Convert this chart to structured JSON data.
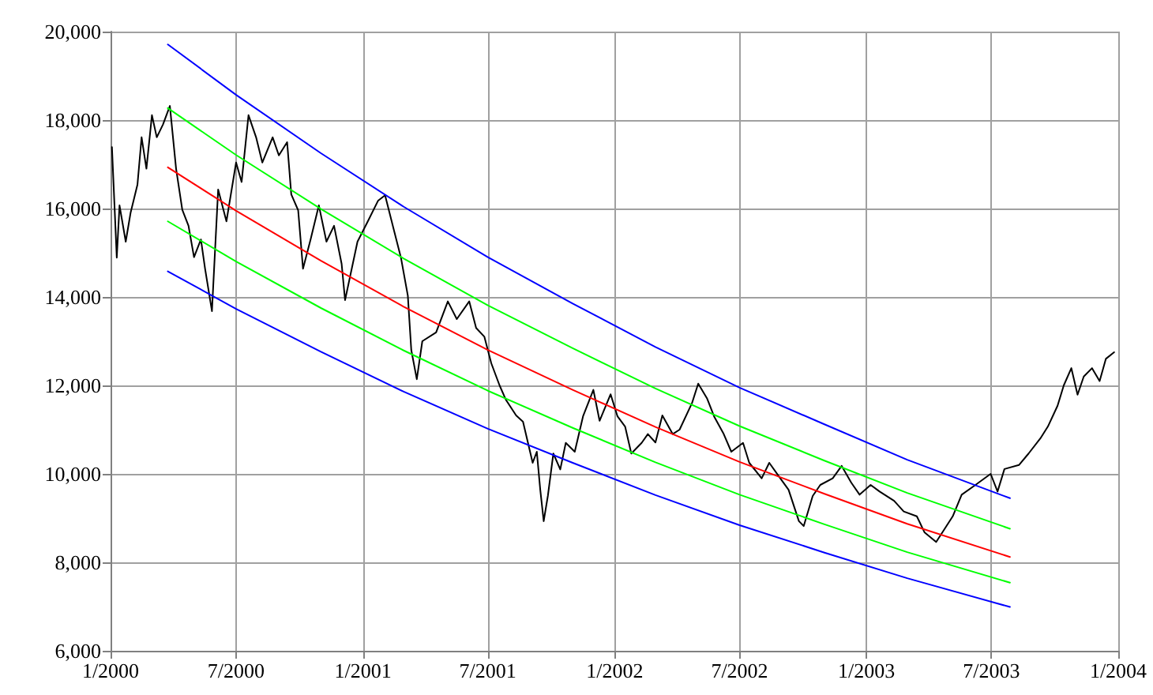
{
  "chart_data": {
    "type": "line",
    "grid": true,
    "marker": "none",
    "line_style": "solid",
    "xlim": [
      "2000-01-01",
      "2004-01-01"
    ],
    "xticks": [
      {
        "value": "2000-01-01",
        "label": "1/2000"
      },
      {
        "value": "2000-07-01",
        "label": "7/2000"
      },
      {
        "value": "2001-01-01",
        "label": "1/2001"
      },
      {
        "value": "2001-07-01",
        "label": "7/2001"
      },
      {
        "value": "2002-01-01",
        "label": "1/2002"
      },
      {
        "value": "2002-07-01",
        "label": "7/2002"
      },
      {
        "value": "2003-01-01",
        "label": "1/2003"
      },
      {
        "value": "2003-07-01",
        "label": "7/2003"
      },
      {
        "value": "2004-01-01",
        "label": "1/2004"
      }
    ],
    "ylim": [
      6000,
      20000
    ],
    "yticks": [
      {
        "value": 6000,
        "label": "6,000"
      },
      {
        "value": 8000,
        "label": "8,000"
      },
      {
        "value": 10000,
        "label": "10,000"
      },
      {
        "value": 12000,
        "label": "12,000"
      },
      {
        "value": 14000,
        "label": "14,000"
      },
      {
        "value": 16000,
        "label": "16,000"
      },
      {
        "value": 18000,
        "label": "18,000"
      },
      {
        "value": 20000,
        "label": "20,000"
      }
    ],
    "series": [
      {
        "color": "#000000",
        "x": [
          "2000-01-03",
          "2000-01-10",
          "2000-01-14",
          "2000-01-23",
          "2000-01-30",
          "2000-02-09",
          "2000-02-15",
          "2000-02-22",
          "2000-03-01",
          "2000-03-08",
          "2000-03-17",
          "2000-03-27",
          "2000-04-05",
          "2000-04-14",
          "2000-04-23",
          "2000-05-01",
          "2000-05-11",
          "2000-05-17",
          "2000-05-27",
          "2000-06-05",
          "2000-06-17",
          "2000-07-01",
          "2000-07-09",
          "2000-07-19",
          "2000-07-30",
          "2000-08-08",
          "2000-08-23",
          "2000-09-01",
          "2000-09-13",
          "2000-09-19",
          "2000-09-29",
          "2000-10-06",
          "2000-10-17",
          "2000-10-29",
          "2000-11-09",
          "2000-11-20",
          "2000-12-01",
          "2000-12-06",
          "2000-12-24",
          "2001-01-08",
          "2001-01-23",
          "2001-02-02",
          "2001-02-15",
          "2001-02-25",
          "2001-03-07",
          "2001-03-12",
          "2001-03-20",
          "2001-03-28",
          "2001-04-17",
          "2001-05-04",
          "2001-05-17",
          "2001-06-04",
          "2001-06-14",
          "2001-06-26",
          "2001-07-06",
          "2001-07-18",
          "2001-07-27",
          "2001-08-11",
          "2001-08-21",
          "2001-09-04",
          "2001-09-10",
          "2001-09-15",
          "2001-09-20",
          "2001-09-26",
          "2001-10-04",
          "2001-10-14",
          "2001-10-22",
          "2001-11-04",
          "2001-11-16",
          "2001-12-01",
          "2001-12-10",
          "2001-12-26",
          "2002-01-05",
          "2002-01-16",
          "2002-01-25",
          "2002-02-09",
          "2002-02-18",
          "2002-03-01",
          "2002-03-11",
          "2002-03-26",
          "2002-04-05",
          "2002-04-23",
          "2002-05-02",
          "2002-05-15",
          "2002-05-25",
          "2002-06-08",
          "2002-06-19",
          "2002-07-06",
          "2002-07-15",
          "2002-08-02",
          "2002-08-13",
          "2002-08-29",
          "2002-09-10",
          "2002-09-25",
          "2002-10-02",
          "2002-10-15",
          "2002-10-26",
          "2002-11-13",
          "2002-11-26",
          "2002-12-10",
          "2002-12-22",
          "2003-01-07",
          "2003-01-20",
          "2003-02-10",
          "2003-02-24",
          "2003-03-15",
          "2003-03-26",
          "2003-04-12",
          "2003-04-22",
          "2003-05-06",
          "2003-05-19",
          "2003-06-08",
          "2003-06-30",
          "2003-07-10",
          "2003-07-20",
          "2003-08-10",
          "2003-08-24",
          "2003-09-10",
          "2003-09-21",
          "2003-10-05",
          "2003-10-14",
          "2003-10-25",
          "2003-11-03",
          "2003-11-12",
          "2003-11-24",
          "2003-12-05",
          "2003-12-14",
          "2003-12-26"
        ],
        "values": [
          17390,
          14890,
          16070,
          15250,
          15900,
          16540,
          17610,
          16900,
          18110,
          17610,
          17900,
          18320,
          16900,
          15970,
          15610,
          14900,
          15300,
          14640,
          13680,
          16430,
          15710,
          17040,
          16600,
          18110,
          17610,
          17040,
          17610,
          17200,
          17500,
          16320,
          15960,
          14640,
          15300,
          16070,
          15250,
          15610,
          14750,
          13930,
          15250,
          15710,
          16180,
          16300,
          15500,
          14890,
          14030,
          12800,
          12140,
          13000,
          13200,
          13900,
          13500,
          13900,
          13300,
          13100,
          12500,
          12000,
          11680,
          11320,
          11180,
          10250,
          10500,
          9640,
          8930,
          9500,
          10460,
          10100,
          10700,
          10500,
          11300,
          11900,
          11200,
          11800,
          11300,
          11070,
          10460,
          10700,
          10900,
          10710,
          11320,
          10900,
          11000,
          11600,
          12040,
          11700,
          11300,
          10900,
          10500,
          10700,
          10250,
          9900,
          10250,
          9900,
          9640,
          8930,
          8820,
          9500,
          9750,
          9900,
          10180,
          9800,
          9530,
          9750,
          9600,
          9390,
          9150,
          9040,
          8680,
          8460,
          8700,
          9040,
          9530,
          9750,
          10000,
          9600,
          10110,
          10200,
          10460,
          10800,
          11070,
          11540,
          12000,
          12390,
          11790,
          12200,
          12390,
          12100,
          12600,
          12750
        ]
      },
      {
        "color": "#0000ff",
        "x": [
          "2000-03-24",
          "2000-07-01",
          "2000-11-01",
          "2001-03-01",
          "2001-07-01",
          "2001-11-01",
          "2002-03-01",
          "2002-07-01",
          "2002-11-01",
          "2003-03-01",
          "2003-07-28"
        ],
        "values": [
          19710,
          18570,
          17250,
          16040,
          14900,
          13850,
          12870,
          11950,
          11120,
          10320,
          9450
        ]
      },
      {
        "color": "#00ff00",
        "x": [
          "2000-03-24",
          "2000-07-01",
          "2000-11-01",
          "2001-03-01",
          "2001-07-01",
          "2001-11-01",
          "2002-03-01",
          "2002-07-01",
          "2002-11-01",
          "2003-03-01",
          "2003-07-28"
        ],
        "values": [
          18270,
          17210,
          15990,
          14870,
          13810,
          12840,
          11930,
          11080,
          10300,
          9570,
          8760
        ]
      },
      {
        "color": "#ff0000",
        "x": [
          "2000-03-24",
          "2000-07-01",
          "2000-11-01",
          "2001-03-01",
          "2001-07-01",
          "2001-11-01",
          "2002-03-01",
          "2002-07-01",
          "2002-11-01",
          "2003-03-01",
          "2003-07-28"
        ],
        "values": [
          16930,
          15950,
          14820,
          13780,
          12800,
          11900,
          11060,
          10270,
          9550,
          8870,
          8120
        ]
      },
      {
        "color": "#00ff00",
        "x": [
          "2000-03-24",
          "2000-07-01",
          "2000-11-01",
          "2001-03-01",
          "2001-07-01",
          "2001-11-01",
          "2002-03-01",
          "2002-07-01",
          "2002-11-01",
          "2003-03-01",
          "2003-07-28"
        ],
        "values": [
          15710,
          14800,
          13750,
          12790,
          11880,
          11040,
          10260,
          9530,
          8860,
          8230,
          7540
        ]
      },
      {
        "color": "#0000ff",
        "x": [
          "2000-03-24",
          "2000-07-01",
          "2000-11-01",
          "2001-03-01",
          "2001-07-01",
          "2001-11-01",
          "2002-03-01",
          "2002-07-01",
          "2002-11-01",
          "2003-03-01",
          "2003-07-28"
        ],
        "values": [
          14580,
          13730,
          12760,
          11860,
          11020,
          10250,
          9520,
          8840,
          8220,
          7640,
          6990
        ]
      }
    ]
  }
}
